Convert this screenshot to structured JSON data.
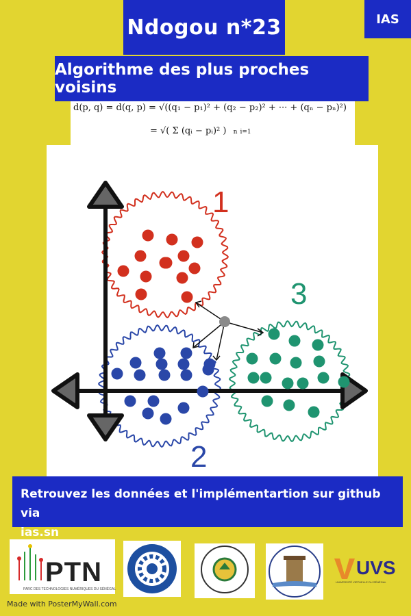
{
  "header": {
    "title": "Ndogou n*23",
    "badge": "IAS",
    "subtitle": "Algorithme des plus proches voisins"
  },
  "formula": {
    "line1": "d(p, q) = d(q, p) = √((q₁ − p₁)² + (q₂ − p₂)² + ··· + (qₙ − pₙ)²)",
    "line2": "= √( Σ (qᵢ − pᵢ)² )",
    "sum_upper": "n",
    "sum_lower": "i=1"
  },
  "diagram": {
    "cluster_labels": [
      "1",
      "2",
      "3"
    ],
    "colors": {
      "cluster1": "#d2301e",
      "cluster2": "#2a47a8",
      "cluster3": "#1f9470",
      "query": "#8a8a8a"
    }
  },
  "footer": {
    "line1": "Retrouvez les données et l'implémentartion sur github via",
    "line2": "ias.sn"
  },
  "logos": {
    "ptn": {
      "name": "PTN",
      "caption": "PARC DES TECHNOLOGIES NUMÉRIQUES DU SÉNÉGAL"
    },
    "uvs": {
      "name": "UVS",
      "caption": "UNIVERSITÉ VIRTUELLE DU SÉNÉGAL"
    }
  },
  "credit": "Made with PosterMyWall.com",
  "colors": {
    "background": "#e2d530",
    "panel_blue": "#1b2bc4"
  }
}
